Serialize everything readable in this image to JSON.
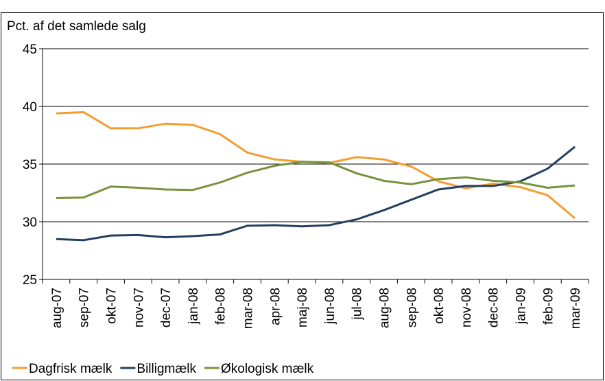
{
  "chart_data": {
    "type": "line",
    "y_label": "Pct. af det samlede salg",
    "categories": [
      "aug-07",
      "sep-07",
      "okt-07",
      "nov-07",
      "dec-07",
      "jan-08",
      "feb-08",
      "mar-08",
      "apr-08",
      "maj-08",
      "jun-08",
      "jul-08",
      "aug-08",
      "sep-08",
      "okt-08",
      "nov-08",
      "dec-08",
      "jan-09",
      "feb-09",
      "mar-09"
    ],
    "series": [
      {
        "name": "Dagfrisk mælk",
        "color": "#f59c2f",
        "values": [
          39.4,
          39.5,
          38.1,
          38.1,
          38.5,
          38.4,
          37.6,
          36.0,
          35.4,
          35.2,
          35.1,
          35.6,
          35.4,
          34.8,
          33.5,
          32.9,
          33.3,
          33.0,
          32.3,
          30.3
        ]
      },
      {
        "name": "Billigmælk",
        "color": "#243f5e",
        "values": [
          28.5,
          28.4,
          28.8,
          28.85,
          28.65,
          28.75,
          28.9,
          29.65,
          29.7,
          29.6,
          29.7,
          30.2,
          31.0,
          31.9,
          32.8,
          33.1,
          33.1,
          33.5,
          34.6,
          36.5
        ]
      },
      {
        "name": "Økologisk mælk",
        "color": "#77933c",
        "values": [
          32.05,
          32.1,
          33.05,
          32.95,
          32.8,
          32.75,
          33.4,
          34.25,
          34.85,
          35.2,
          35.15,
          34.2,
          33.55,
          33.25,
          33.7,
          33.85,
          33.55,
          33.4,
          32.95,
          33.15
        ]
      }
    ],
    "ylim": [
      25,
      45
    ],
    "yticks": [
      25,
      30,
      35,
      40,
      45
    ],
    "grid": true,
    "legend": "bottom"
  }
}
